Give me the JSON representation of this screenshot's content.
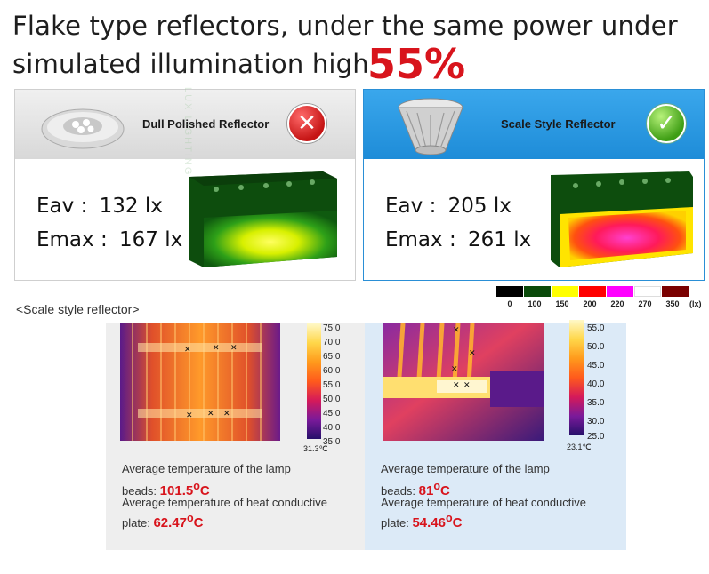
{
  "headline": {
    "line1": "Flake type reflectors, under the same power under",
    "line2": "simulated illumination high",
    "percent": "55%"
  },
  "panels": {
    "left": {
      "title": "Dull Polished Reflector",
      "badge_icon": "x-circle-icon",
      "eav_label": "Eav",
      "eav_sep": ":",
      "eav_value": "132 lx",
      "emax_label": "Emax",
      "emax_sep": ":",
      "emax_value": "167 lx"
    },
    "right": {
      "title": "Scale Style Reflector",
      "badge_icon": "check-circle-icon",
      "eav_label": "Eav",
      "eav_sep": ":",
      "eav_value": "205 lx",
      "emax_label": "Emax",
      "emax_sep": ":",
      "emax_value": "261 lx"
    }
  },
  "lux_scale": {
    "labels": [
      "0",
      "100",
      "150",
      "200",
      "220",
      "270",
      "350"
    ],
    "unit": "(lx)",
    "colors": [
      "#000000",
      "#0a4a0a",
      "#ffff00",
      "#ff0000",
      "#ff00ff",
      "#ffffff",
      "#7a0000"
    ]
  },
  "section_label": "<Scale style reflector>",
  "thermal": {
    "left": {
      "ticks": [
        "75.0",
        "70.0",
        "65.0",
        "60.0",
        "55.0",
        "50.0",
        "45.0",
        "40.0",
        "35.0"
      ],
      "min": "31.3℃",
      "lamp_label": "Average temperature of the lamp",
      "beads_label": "beads:",
      "beads_value": "101.5",
      "plate_line": "Average temperature of heat conductive",
      "plate_label": "plate:",
      "plate_value": "62.47",
      "unit": "C"
    },
    "right": {
      "ticks": [
        "55.0",
        "50.0",
        "45.0",
        "40.0",
        "35.0",
        "30.0",
        "25.0"
      ],
      "min": "23.1℃",
      "lamp_label": "Average temperature of the lamp",
      "beads_label": "beads:",
      "beads_value": "81",
      "plate_line": "Average temperature of heat conductive",
      "plate_label": "plate:",
      "plate_value": "54.46",
      "unit": "C"
    }
  },
  "watermark": "LUX LIGHTING"
}
